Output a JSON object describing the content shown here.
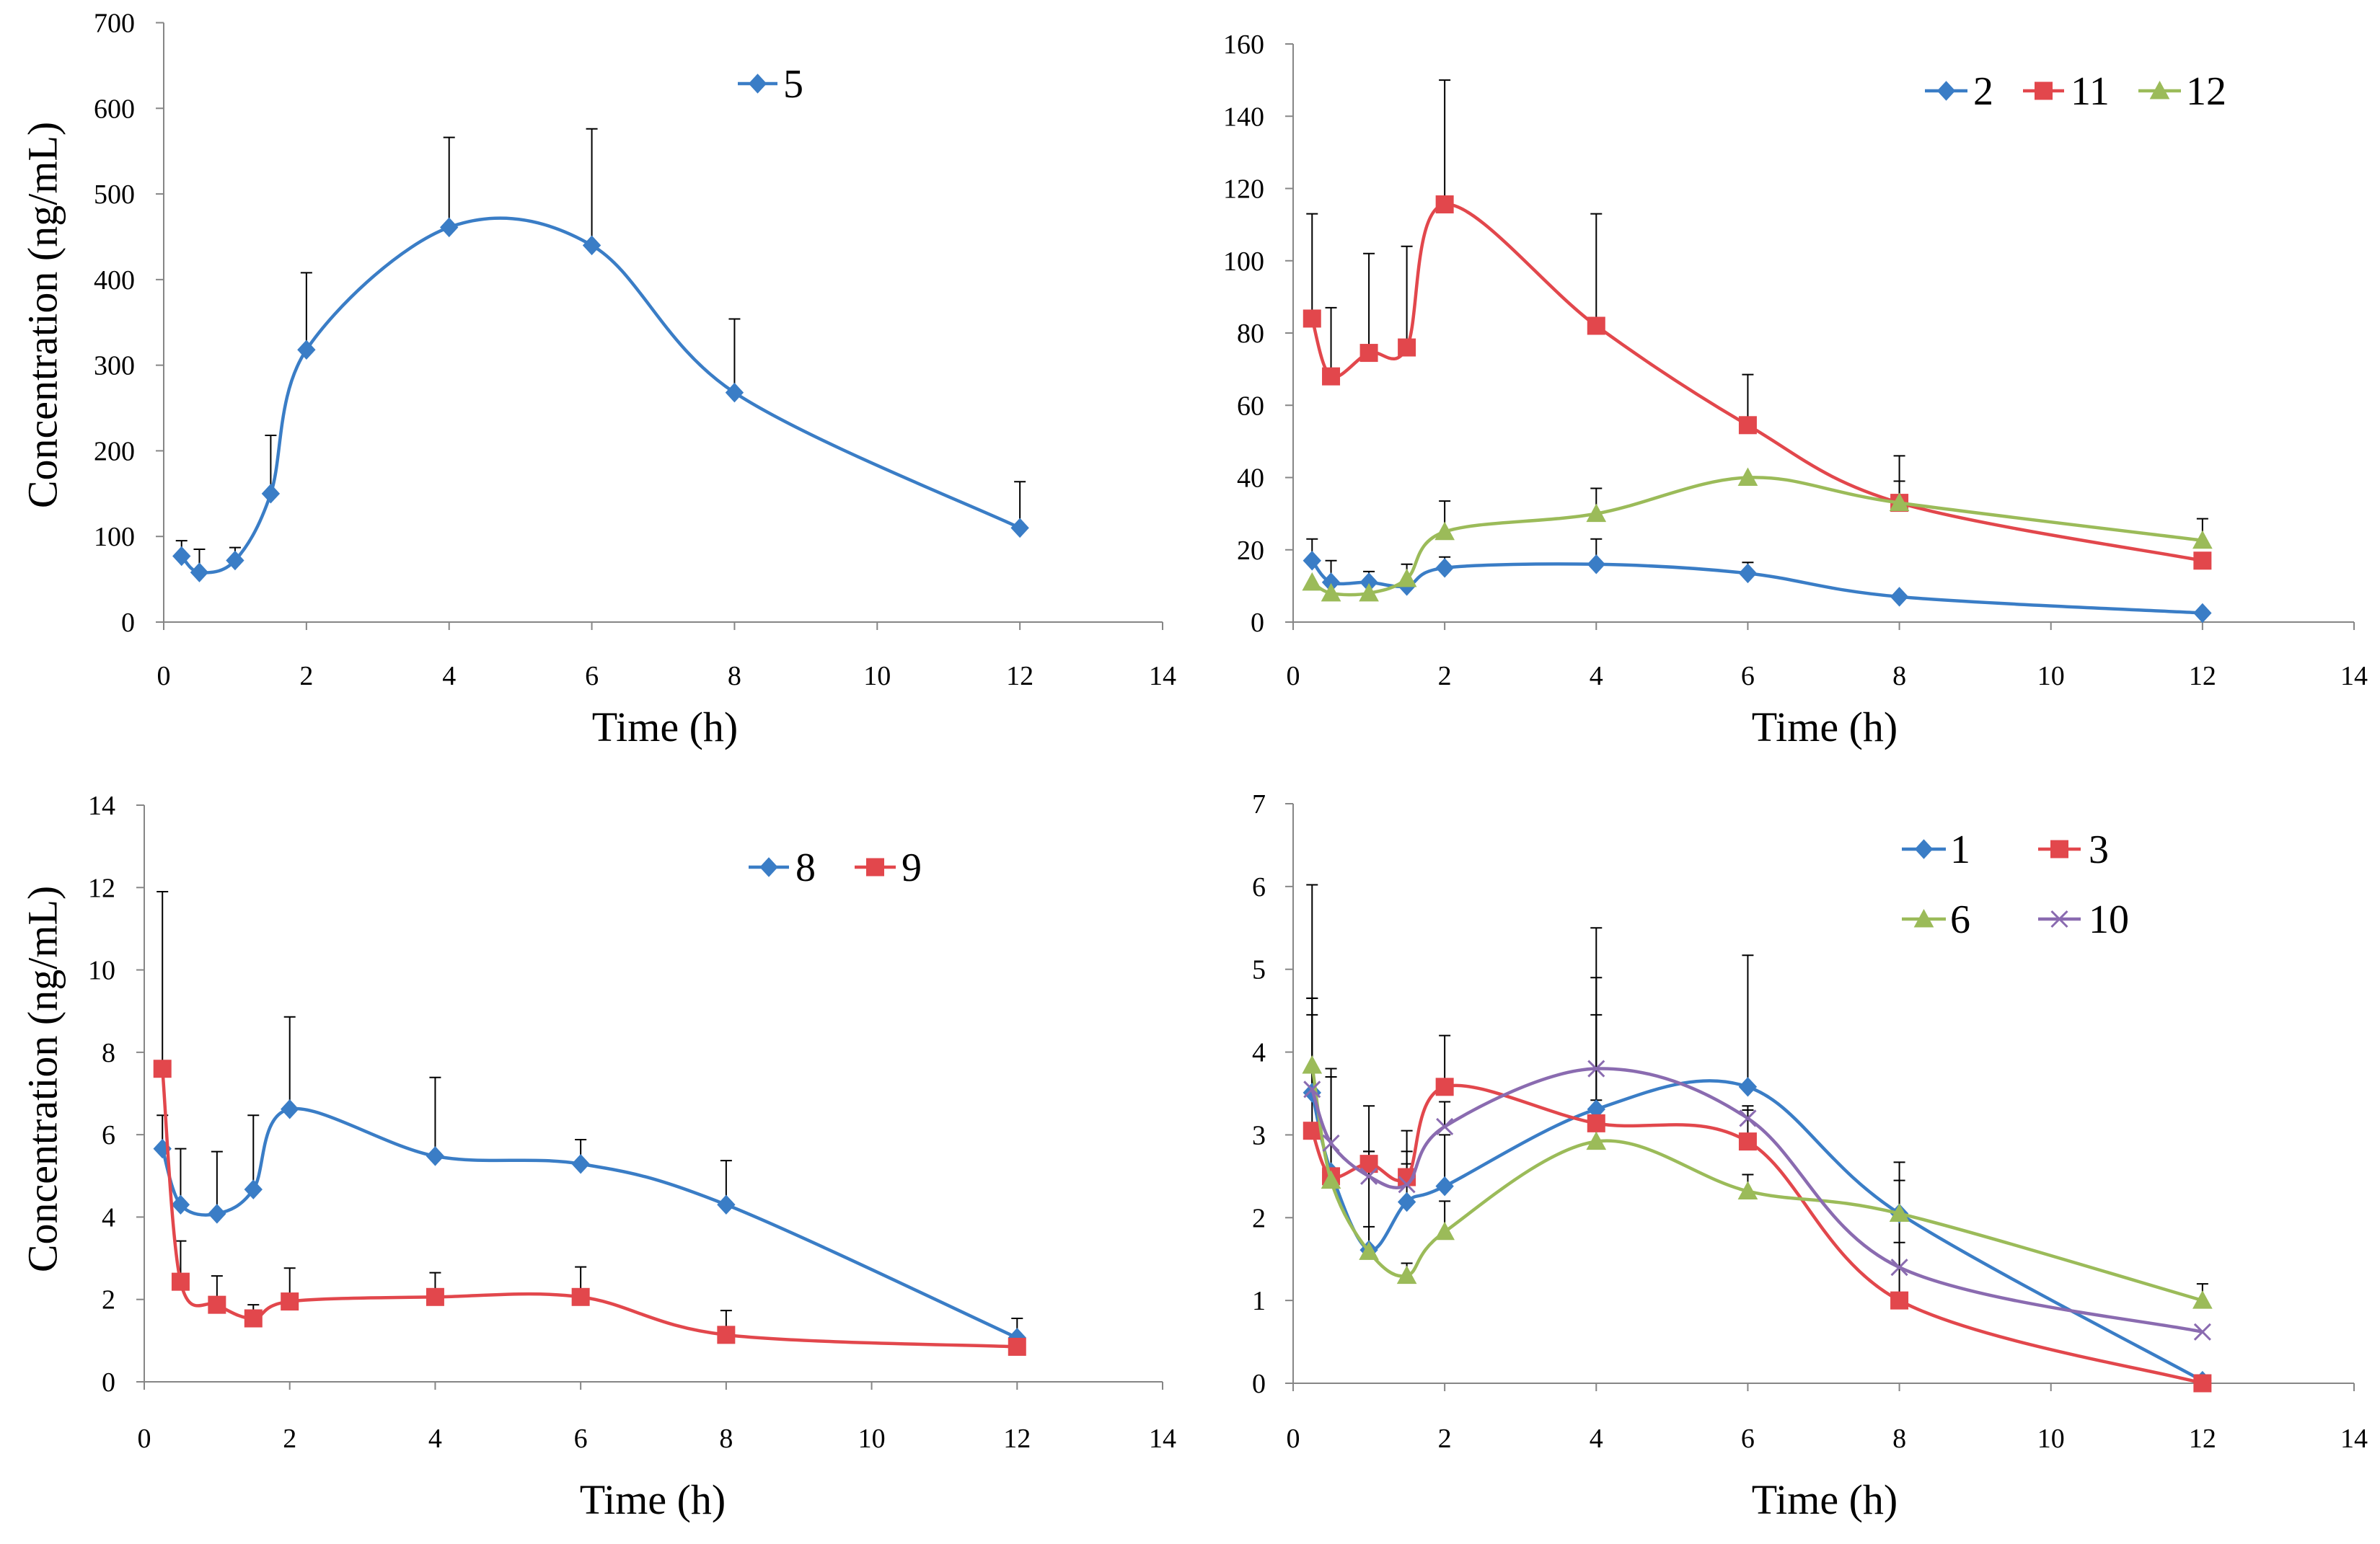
{
  "chart_data": [
    {
      "type": "line",
      "smooth": true,
      "x": [
        0.25,
        0.5,
        1,
        1.5,
        2,
        4,
        6,
        8,
        12
      ],
      "xlabel": "Time (h)",
      "ylabel": "Concentration (ng/mL)",
      "xlim": [
        0,
        14
      ],
      "ylim": [
        0,
        700
      ],
      "xticks": [
        0,
        2,
        4,
        6,
        8,
        10,
        12,
        14
      ],
      "yticks": [
        0,
        100,
        200,
        300,
        400,
        500,
        600,
        700
      ],
      "grid": false,
      "legend": "top-center",
      "series": [
        {
          "name": "5",
          "color": "#3A7DC6",
          "marker": "diamond",
          "values": [
            77,
            58,
            72,
            150,
            318,
            461,
            440,
            268,
            110
          ],
          "error_plus": [
            18,
            27,
            15,
            68,
            90,
            105,
            136,
            86,
            54
          ]
        }
      ]
    },
    {
      "type": "line",
      "smooth": true,
      "x": [
        0.25,
        0.5,
        1,
        1.5,
        2,
        4,
        6,
        8,
        12
      ],
      "xlabel": "Time (h)",
      "xlim": [
        0,
        14
      ],
      "ylim": [
        0,
        160
      ],
      "xticks": [
        0,
        2,
        4,
        6,
        8,
        10,
        12,
        14
      ],
      "yticks": [
        0,
        20,
        40,
        60,
        80,
        100,
        120,
        140,
        160
      ],
      "grid": false,
      "legend": "top-right",
      "series": [
        {
          "name": "2",
          "color": "#3A7DC6",
          "marker": "diamond",
          "values": [
            17,
            11,
            11,
            10,
            15,
            16,
            13.5,
            7,
            2.5
          ],
          "error_plus": [
            6,
            6,
            3,
            0,
            3,
            7,
            3,
            0,
            0
          ]
        },
        {
          "name": "11",
          "color": "#E2474C",
          "marker": "square",
          "values": [
            84,
            68,
            74.5,
            76,
            115.6,
            82,
            54.5,
            33,
            17
          ],
          "error_plus": [
            29,
            19,
            27.5,
            28,
            34.4,
            31,
            14,
            13,
            0
          ]
        },
        {
          "name": "12",
          "color": "#9BBB59",
          "marker": "triangle",
          "values": [
            11,
            8,
            8,
            12,
            25,
            30,
            40,
            33,
            22.6
          ],
          "error_plus": [
            0,
            0,
            0,
            4,
            8.5,
            7,
            0,
            6,
            6
          ]
        }
      ]
    },
    {
      "type": "line",
      "smooth": true,
      "x": [
        0.25,
        0.5,
        1,
        1.5,
        2,
        4,
        6,
        8,
        12
      ],
      "xlabel": "Time (h)",
      "ylabel": "Concentration (ng/mL)",
      "xlim": [
        0,
        14
      ],
      "ylim": [
        0,
        14
      ],
      "xticks": [
        0,
        2,
        4,
        6,
        8,
        10,
        12,
        14
      ],
      "yticks": [
        0,
        2,
        4,
        6,
        8,
        10,
        12,
        14
      ],
      "grid": false,
      "legend": "top-right",
      "series": [
        {
          "name": "8",
          "color": "#3A7DC6",
          "marker": "diamond",
          "values": [
            5.66,
            4.3,
            4.08,
            4.67,
            6.62,
            5.48,
            5.29,
            4.3,
            1.07
          ],
          "error_plus": [
            0.81,
            1.36,
            1.51,
            1.8,
            2.24,
            1.91,
            0.59,
            1.07,
            0.47
          ]
        },
        {
          "name": "9",
          "color": "#E2474C",
          "marker": "square",
          "values": [
            7.6,
            2.43,
            1.87,
            1.54,
            1.95,
            2.06,
            2.06,
            1.14,
            0.85
          ],
          "error_plus": [
            4.3,
            0.99,
            0.7,
            0.33,
            0.81,
            0.59,
            0.73,
            0.59,
            0
          ]
        }
      ]
    },
    {
      "type": "line",
      "smooth": true,
      "x": [
        0.25,
        0.5,
        1,
        1.5,
        2,
        4,
        6,
        8,
        12
      ],
      "xlabel": "Time (h)",
      "xlim": [
        0,
        14
      ],
      "ylim": [
        0,
        7
      ],
      "xticks": [
        0,
        2,
        4,
        6,
        8,
        10,
        12,
        14
      ],
      "yticks": [
        0,
        1,
        2,
        3,
        4,
        5,
        6,
        7
      ],
      "grid": false,
      "legend": "top-right",
      "series": [
        {
          "name": "1",
          "color": "#3A7DC6",
          "marker": "diamond",
          "values": [
            3.51,
            2.55,
            1.61,
            2.19,
            2.38,
            3.31,
            3.58,
            2.05,
            0.03
          ],
          "error_plus": [
            2.51,
            1.25,
            1.19,
            0.86,
            0.62,
            1.14,
            1.59,
            0.62,
            0
          ]
        },
        {
          "name": "3",
          "color": "#E2474C",
          "marker": "square",
          "values": [
            3.05,
            2.5,
            2.65,
            2.49,
            3.58,
            3.14,
            2.92,
            1.0,
            0.0
          ],
          "error_plus": [
            1.4,
            1.2,
            0.7,
            0.31,
            0.62,
            1.76,
            0.38,
            0.7,
            0
          ]
        },
        {
          "name": "6",
          "color": "#9BBB59",
          "marker": "triangle",
          "values": [
            3.84,
            2.45,
            1.59,
            1.3,
            1.83,
            2.92,
            2.32,
            2.05,
            1.0
          ],
          "error_plus": [
            0.81,
            1.35,
            0.3,
            0.15,
            0.37,
            0.5,
            0.2,
            0.4,
            0.2
          ]
        },
        {
          "name": "10",
          "color": "#8A6BB0",
          "marker": "x",
          "values": [
            3.55,
            2.9,
            2.5,
            2.4,
            3.1,
            3.8,
            3.2,
            1.4,
            0.62
          ],
          "error_plus": [
            1.1,
            0.8,
            0.3,
            0.25,
            0.3,
            1.7,
            0.15,
            0.6,
            0
          ]
        }
      ]
    }
  ]
}
